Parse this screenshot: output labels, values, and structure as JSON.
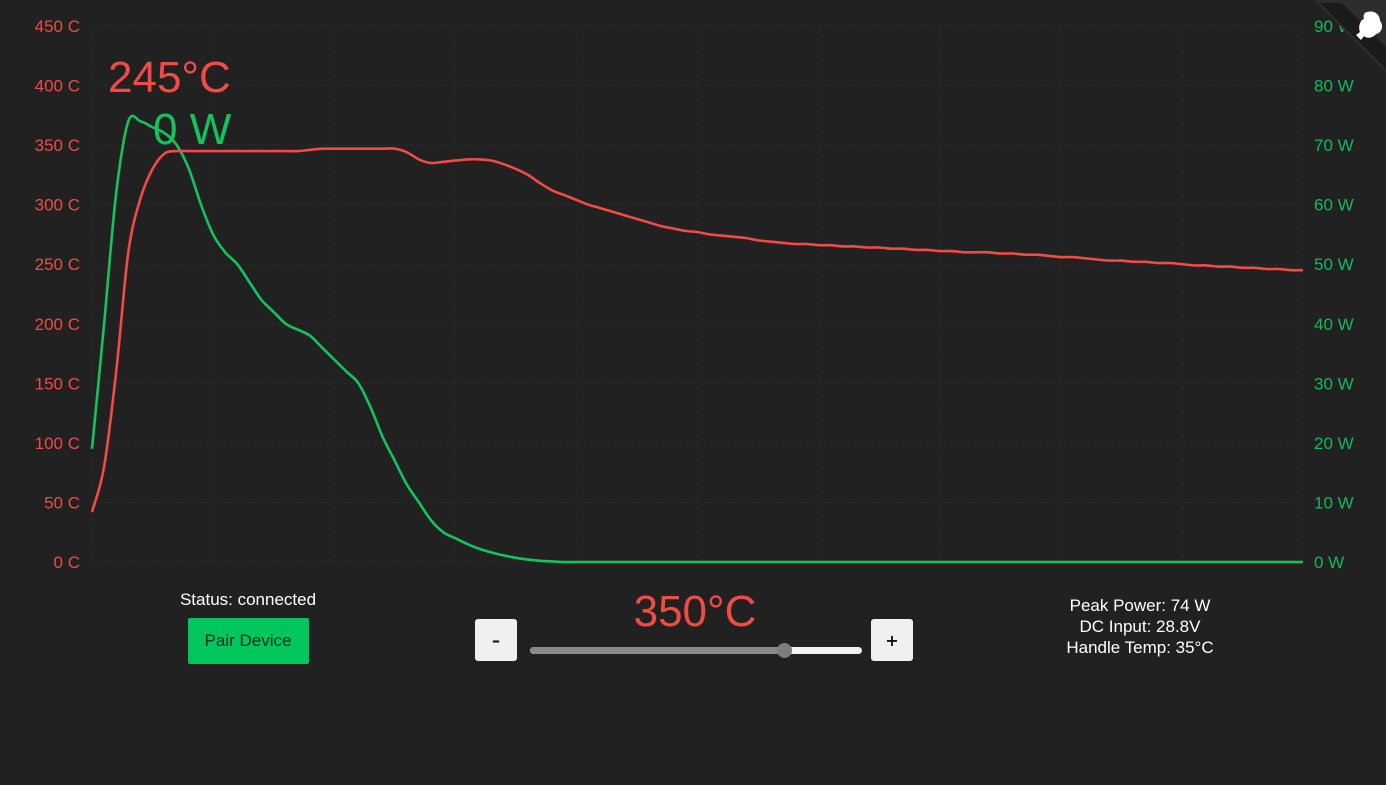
{
  "readout": {
    "current_temp": "245°C",
    "current_power": "0 W"
  },
  "status": {
    "text": "Status: connected",
    "pair_button": "Pair Device"
  },
  "setpoint": {
    "label": "350°C",
    "value_fraction": 0.765,
    "minus_label": "–",
    "plus_label": "+"
  },
  "stats": {
    "peak_power": "Peak Power: 74 W",
    "dc_input": "DC Input: 28.8V",
    "handle_temp": "Handle Temp: 35°C"
  },
  "colors": {
    "background": "#212121",
    "temperature": "#f24a45",
    "power": "#12c45e"
  },
  "icons": {
    "corner": "logo-icon"
  },
  "chart_data": {
    "type": "line",
    "grid": true,
    "y_left": {
      "unit": "C",
      "range": [
        0,
        450
      ],
      "tick_labels": [
        "450 C",
        "400 C",
        "350 C",
        "300 C",
        "250 C",
        "200 C",
        "150 C",
        "100 C",
        "50 C",
        "0 C"
      ]
    },
    "y_right": {
      "unit": "W",
      "range": [
        0,
        90
      ],
      "tick_labels": [
        "90 W",
        "80 W",
        "70 W",
        "60 W",
        "50 W",
        "40 W",
        "30 W",
        "20 W",
        "10 W",
        "0 W"
      ]
    },
    "x": [
      0,
      1,
      2,
      3,
      4,
      5,
      6,
      7,
      8,
      9,
      10,
      11,
      12,
      13,
      14,
      15,
      16,
      17,
      18,
      19,
      20,
      21,
      22,
      23,
      24,
      25,
      26,
      27,
      28,
      29,
      30,
      31,
      32,
      33,
      34,
      35,
      36,
      37,
      38,
      39,
      40,
      41,
      42,
      43,
      44,
      45,
      46,
      47,
      48,
      49,
      50,
      51,
      52,
      53,
      54,
      55,
      56,
      57,
      58,
      59,
      60,
      61,
      62,
      63,
      64,
      65,
      66,
      67,
      68,
      69,
      70,
      71,
      72,
      73,
      74,
      75,
      76,
      77,
      78,
      79,
      80,
      81,
      82,
      83,
      84,
      85,
      86,
      87,
      88,
      89,
      90,
      91,
      92,
      93,
      94,
      95,
      96,
      97,
      98,
      99,
      100
    ],
    "series": [
      {
        "axis": "left",
        "color": "#f24a45",
        "values": [
          42,
          80,
          160,
          260,
          305,
          330,
          343,
          345,
          345,
          345,
          345,
          345,
          345,
          345,
          345,
          345,
          345,
          345,
          346,
          347,
          347,
          347,
          347,
          347,
          347,
          347,
          344,
          338,
          335,
          336,
          337,
          338,
          338,
          337,
          334,
          330,
          325,
          318,
          312,
          308,
          304,
          300,
          297,
          294,
          291,
          288,
          285,
          282,
          280,
          278,
          277,
          275,
          274,
          273,
          272,
          270,
          269,
          268,
          267,
          267,
          266,
          266,
          265,
          265,
          264,
          264,
          263,
          263,
          262,
          262,
          261,
          261,
          260,
          260,
          260,
          259,
          259,
          258,
          258,
          257,
          256,
          256,
          255,
          254,
          253,
          253,
          252,
          252,
          251,
          251,
          250,
          249,
          249,
          248,
          248,
          247,
          247,
          246,
          246,
          245,
          245
        ]
      },
      {
        "axis": "right",
        "color": "#12c45e",
        "values": [
          19,
          40,
          62,
          74,
          74,
          73,
          72,
          70,
          66,
          60,
          55,
          52,
          50,
          47,
          44,
          42,
          40,
          39,
          38,
          36,
          34,
          32,
          30,
          26,
          21,
          17,
          13,
          10,
          7,
          5,
          4,
          3,
          2.2,
          1.6,
          1.1,
          0.7,
          0.4,
          0.2,
          0.1,
          0,
          0,
          0,
          0,
          0,
          0,
          0,
          0,
          0,
          0,
          0,
          0,
          0,
          0,
          0,
          0,
          0,
          0,
          0,
          0,
          0,
          0,
          0,
          0,
          0,
          0,
          0,
          0,
          0,
          0,
          0,
          0,
          0,
          0,
          0,
          0,
          0,
          0,
          0,
          0,
          0,
          0,
          0,
          0,
          0,
          0,
          0,
          0,
          0,
          0,
          0,
          0,
          0,
          0,
          0,
          0,
          0,
          0,
          0,
          0,
          0,
          0
        ]
      }
    ]
  }
}
